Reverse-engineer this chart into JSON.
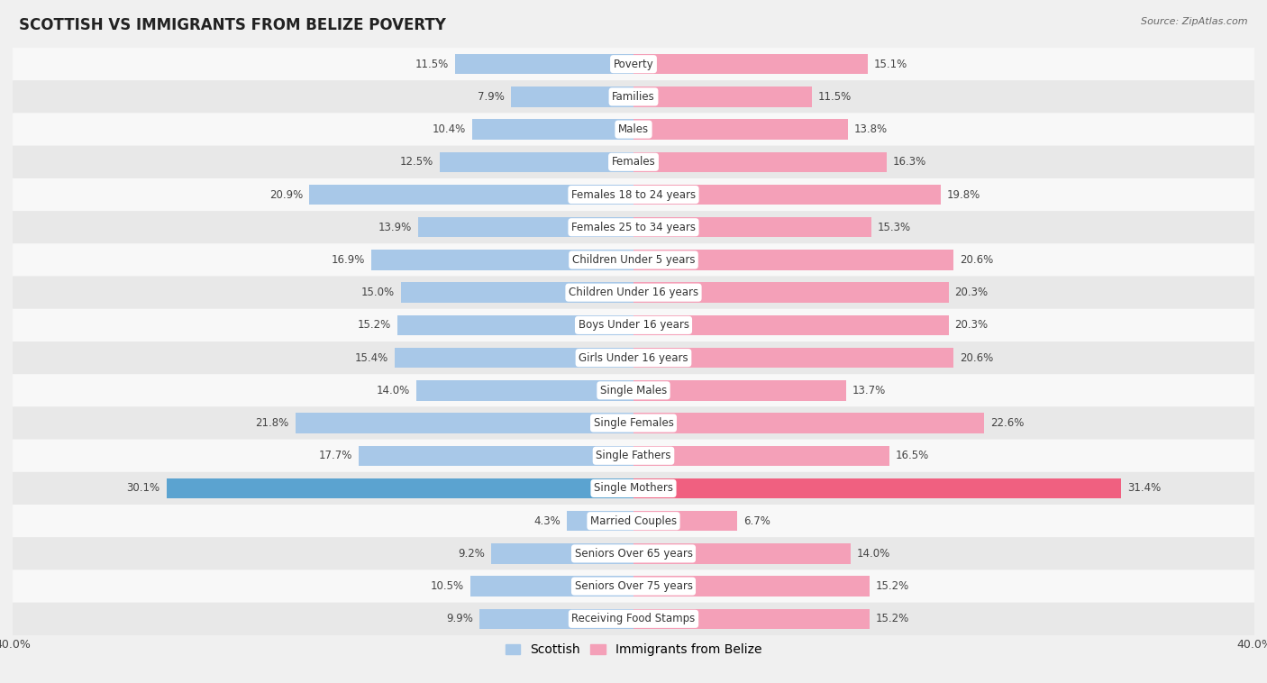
{
  "title": "SCOTTISH VS IMMIGRANTS FROM BELIZE POVERTY",
  "source": "Source: ZipAtlas.com",
  "categories": [
    "Poverty",
    "Families",
    "Males",
    "Females",
    "Females 18 to 24 years",
    "Females 25 to 34 years",
    "Children Under 5 years",
    "Children Under 16 years",
    "Boys Under 16 years",
    "Girls Under 16 years",
    "Single Males",
    "Single Females",
    "Single Fathers",
    "Single Mothers",
    "Married Couples",
    "Seniors Over 65 years",
    "Seniors Over 75 years",
    "Receiving Food Stamps"
  ],
  "scottish": [
    11.5,
    7.9,
    10.4,
    12.5,
    20.9,
    13.9,
    16.9,
    15.0,
    15.2,
    15.4,
    14.0,
    21.8,
    17.7,
    30.1,
    4.3,
    9.2,
    10.5,
    9.9
  ],
  "belize": [
    15.1,
    11.5,
    13.8,
    16.3,
    19.8,
    15.3,
    20.6,
    20.3,
    20.3,
    20.6,
    13.7,
    22.6,
    16.5,
    31.4,
    6.7,
    14.0,
    15.2,
    15.2
  ],
  "scottish_color": "#a8c8e8",
  "belize_color": "#f4a0b8",
  "highlight_scottish_color": "#5ba3d0",
  "highlight_belize_color": "#f06080",
  "axis_limit": 40.0,
  "bg_color": "#f0f0f0",
  "row_bg_light": "#f8f8f8",
  "row_bg_dark": "#e8e8e8",
  "bar_height": 0.62,
  "label_fontsize": 8.5,
  "title_fontsize": 12
}
